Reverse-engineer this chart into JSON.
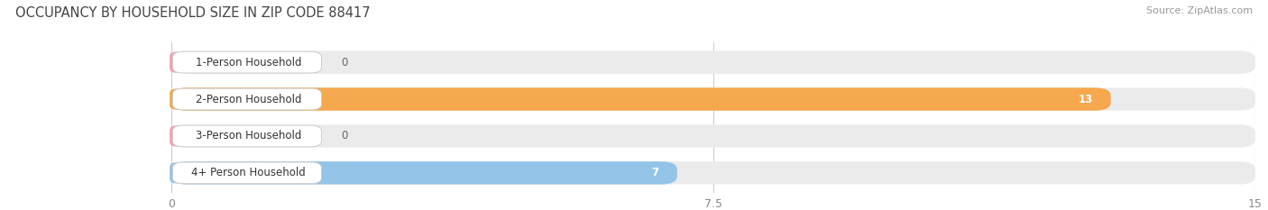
{
  "title": "OCCUPANCY BY HOUSEHOLD SIZE IN ZIP CODE 88417",
  "source": "Source: ZipAtlas.com",
  "categories": [
    "1-Person Household",
    "2-Person Household",
    "3-Person Household",
    "4+ Person Household"
  ],
  "values": [
    0,
    13,
    0,
    7
  ],
  "bar_colors": [
    "#f2a0b0",
    "#f5a84d",
    "#f2a0b0",
    "#93c4e8"
  ],
  "bar_bg_color": "#ebebeb",
  "xlim": [
    0,
    15
  ],
  "xticks": [
    0,
    7.5,
    15
  ],
  "title_fontsize": 10.5,
  "source_fontsize": 8,
  "label_fontsize": 8.5,
  "value_fontsize": 8.5,
  "tick_fontsize": 9,
  "fig_bg_color": "#ffffff",
  "text_color": "#444444",
  "tick_color": "#888888",
  "grid_color": "#cccccc"
}
